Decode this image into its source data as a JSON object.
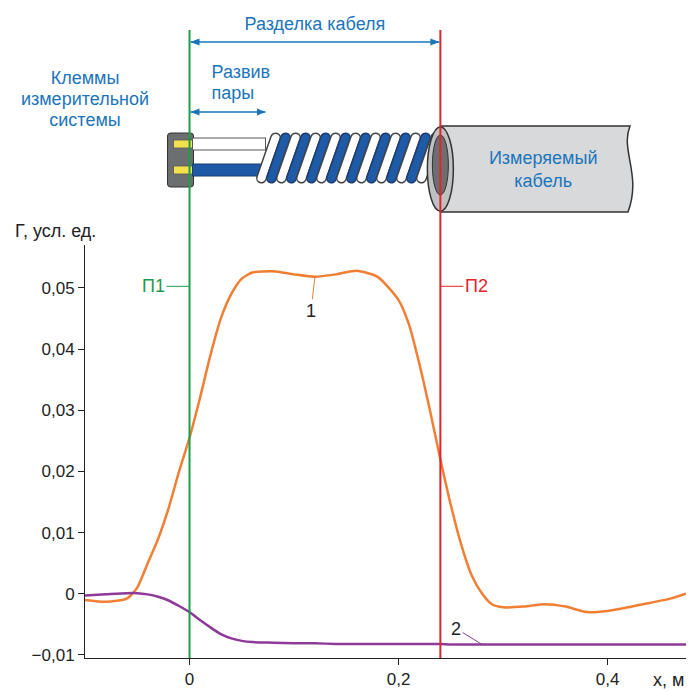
{
  "chart_data": {
    "type": "line",
    "xlabel": "x, м",
    "ylabel": "Γ, усл. ед.",
    "x": [
      -0.1,
      -0.08,
      -0.06,
      -0.05,
      -0.04,
      -0.03,
      -0.02,
      -0.01,
      0,
      0.01,
      0.02,
      0.03,
      0.04,
      0.05,
      0.06,
      0.08,
      0.1,
      0.12,
      0.14,
      0.16,
      0.18,
      0.2,
      0.21,
      0.22,
      0.23,
      0.24,
      0.25,
      0.26,
      0.27,
      0.28,
      0.29,
      0.3,
      0.32,
      0.34,
      0.36,
      0.38,
      0.4,
      0.42,
      0.44,
      0.46,
      0.475
    ],
    "series": [
      {
        "name": "1",
        "color": "#f07f34",
        "values": [
          -0.001,
          -0.0013,
          -0.0008,
          0.001,
          0.005,
          0.009,
          0.014,
          0.02,
          0.0255,
          0.032,
          0.039,
          0.045,
          0.049,
          0.0515,
          0.0525,
          0.0527,
          0.0522,
          0.0518,
          0.0522,
          0.0528,
          0.0518,
          0.048,
          0.044,
          0.0375,
          0.03,
          0.022,
          0.0145,
          0.008,
          0.003,
          0.0,
          -0.0018,
          -0.0022,
          -0.0021,
          -0.0017,
          -0.0021,
          -0.003,
          -0.0028,
          -0.0022,
          -0.0015,
          -0.0008,
          0.0
        ]
      },
      {
        "name": "2",
        "color": "#8e3a99",
        "values": [
          -0.0003,
          -0.0001,
          0.0001,
          0.0001,
          -0.0001,
          -0.0005,
          -0.0011,
          -0.002,
          -0.003,
          -0.0043,
          -0.0055,
          -0.0066,
          -0.0073,
          -0.0077,
          -0.0079,
          -0.008,
          -0.0081,
          -0.0081,
          -0.0082,
          -0.0082,
          -0.0082,
          -0.0082,
          -0.0082,
          -0.0082,
          -0.0082,
          -0.0082,
          -0.0083,
          -0.0083,
          -0.0083,
          -0.0083,
          -0.0083,
          -0.0083,
          -0.0083,
          -0.0083,
          -0.0083,
          -0.0083,
          -0.0083,
          -0.0083,
          -0.0083,
          -0.0083,
          -0.0083
        ]
      }
    ],
    "xlim": [
      -0.1,
      0.475
    ],
    "xticks": [
      0,
      {
        "value": 0.2,
        "label": "0,2"
      },
      {
        "value": 0.4,
        "label": "0,4"
      }
    ],
    "ylim": [
      -0.0105,
      0.057
    ],
    "yticks": [
      {
        "value": -0.01,
        "label": "−0,01"
      },
      0,
      {
        "value": 0.01,
        "label": "0,01"
      },
      {
        "value": 0.02,
        "label": "0,02"
      },
      {
        "value": 0.03,
        "label": "0,03"
      },
      {
        "value": 0.04,
        "label": "0,04"
      },
      {
        "value": 0.05,
        "label": "0,05"
      }
    ],
    "grid": false,
    "reference_lines": [
      {
        "x": 0,
        "label": "П1",
        "color": "#1a9e48"
      },
      {
        "x": 0.24,
        "label": "П2",
        "color": "#e3242b"
      }
    ],
    "annotations": [
      {
        "text": "1",
        "x": 0.12,
        "y": 0.0518
      },
      {
        "text": "2",
        "x": 0.28,
        "y": -0.0083
      }
    ]
  },
  "diagram": {
    "cable_cut": "Разделка кабеля",
    "pair_untwist": "Развив пары",
    "terminals": "Клеммы измерительной системы",
    "cable": "Измеряемый кабель"
  }
}
